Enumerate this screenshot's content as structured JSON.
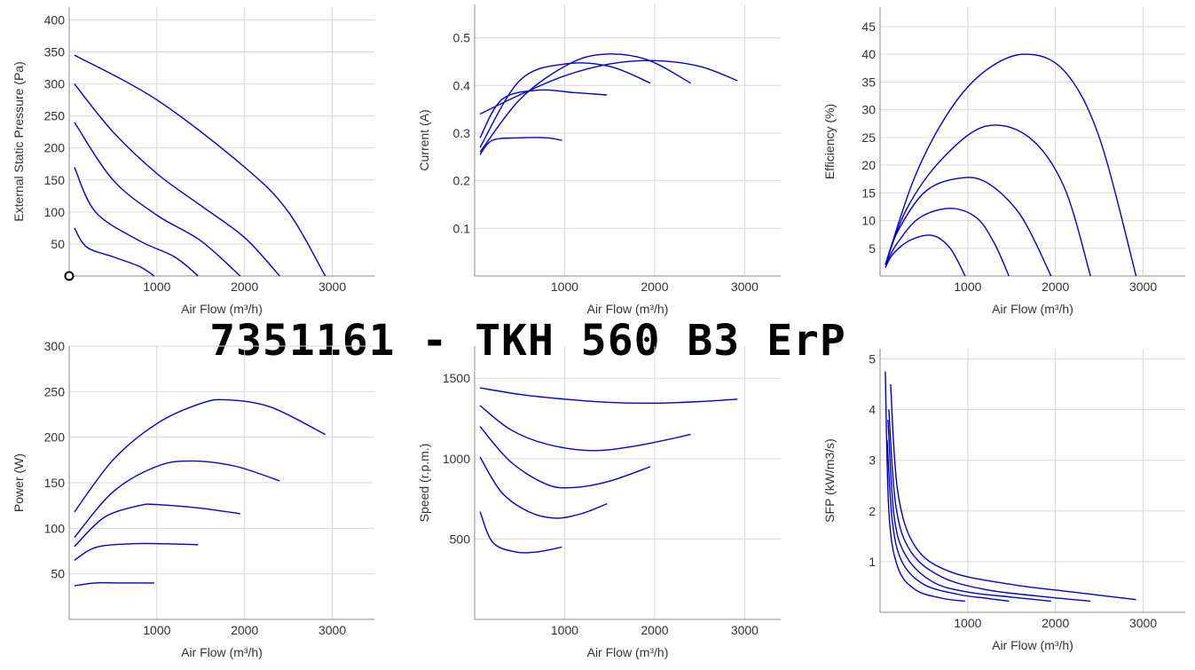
{
  "title": "7351161 - TKH 560 B3 ErP",
  "line_color": "#0000cc",
  "chart_data": [
    {
      "type": "line",
      "xlabel": "Air Flow (m³/h)",
      "ylabel": "External Static Pressure (Pa)",
      "xlim": [
        0,
        3480
      ],
      "ylim": [
        0,
        420
      ],
      "xticks": [
        "1000",
        "2000",
        "3000"
      ],
      "yticks": [
        "50",
        "100",
        "150",
        "200",
        "250",
        "300",
        "350",
        "400"
      ],
      "grid": true,
      "series": [
        {
          "x": [
            60,
            1000,
            2000,
            2500,
            2920
          ],
          "y": [
            345,
            275,
            170,
            100,
            0
          ]
        },
        {
          "x": [
            60,
            500,
            1000,
            1500,
            2000,
            2400
          ],
          "y": [
            300,
            225,
            160,
            110,
            60,
            0
          ]
        },
        {
          "x": [
            60,
            500,
            1000,
            1500,
            1950
          ],
          "y": [
            240,
            150,
            95,
            55,
            0
          ]
        },
        {
          "x": [
            60,
            300,
            800,
            1200,
            1470
          ],
          "y": [
            170,
            100,
            55,
            30,
            0
          ]
        },
        {
          "x": [
            60,
            200,
            500,
            800,
            970
          ],
          "y": [
            75,
            45,
            30,
            15,
            0
          ]
        }
      ],
      "marker": {
        "x": 0,
        "y": 0
      }
    },
    {
      "type": "line",
      "xlabel": "Air Flow (m³/h)",
      "ylabel": "Current (A)",
      "xlim": [
        0,
        3400
      ],
      "ylim": [
        0,
        0.57
      ],
      "xticks": [
        "1000",
        "2000",
        "3000"
      ],
      "yticks": [
        "0.1",
        "0.2",
        "0.3",
        "0.4",
        "0.5"
      ],
      "grid": true,
      "series": [
        {
          "x": [
            60,
            500,
            1000,
            1500,
            2000,
            2500,
            2920
          ],
          "y": [
            0.34,
            0.38,
            0.42,
            0.445,
            0.452,
            0.44,
            0.41
          ]
        },
        {
          "x": [
            60,
            500,
            1000,
            1400,
            1900,
            2400
          ],
          "y": [
            0.26,
            0.37,
            0.44,
            0.465,
            0.455,
            0.405
          ]
        },
        {
          "x": [
            60,
            500,
            1000,
            1500,
            1950
          ],
          "y": [
            0.27,
            0.41,
            0.445,
            0.44,
            0.405
          ]
        },
        {
          "x": [
            60,
            300,
            700,
            1100,
            1470
          ],
          "y": [
            0.29,
            0.37,
            0.39,
            0.385,
            0.38
          ]
        },
        {
          "x": [
            60,
            200,
            500,
            800,
            970
          ],
          "y": [
            0.255,
            0.285,
            0.29,
            0.29,
            0.285
          ]
        }
      ]
    },
    {
      "type": "line",
      "xlabel": "Air Flow (m³/h)",
      "ylabel": "Efficiency (%)",
      "xlim": [
        0,
        3480
      ],
      "ylim": [
        0,
        48.5
      ],
      "xticks": [
        "1000",
        "2000",
        "3000"
      ],
      "yticks": [
        "5",
        "10",
        "15",
        "20",
        "25",
        "30",
        "35",
        "40",
        "45"
      ],
      "grid": true,
      "series": [
        {
          "x": [
            60,
            400,
            800,
            1200,
            1650,
            2100,
            2500,
            2920
          ],
          "y": [
            2,
            18,
            30,
            37,
            40,
            37,
            25,
            0
          ]
        },
        {
          "x": [
            60,
            300,
            700,
            1200,
            1700,
            2100,
            2400
          ],
          "y": [
            2,
            12,
            21,
            27,
            25,
            16,
            0
          ]
        },
        {
          "x": [
            60,
            200,
            500,
            850,
            1200,
            1600,
            1950
          ],
          "y": [
            2,
            8,
            15,
            17.5,
            17,
            11,
            0
          ]
        },
        {
          "x": [
            60,
            200,
            450,
            800,
            1100,
            1300,
            1470
          ],
          "y": [
            2,
            6,
            10.5,
            12.2,
            10.5,
            6,
            0
          ]
        },
        {
          "x": [
            60,
            150,
            350,
            600,
            800,
            970
          ],
          "y": [
            1.5,
            4,
            6.5,
            7.3,
            5,
            0
          ]
        }
      ]
    },
    {
      "type": "line",
      "xlabel": "Air Flow (m³/h)",
      "ylabel": "Power (W)",
      "xlim": [
        0,
        3480
      ],
      "ylim": [
        0,
        300
      ],
      "xticks": [
        "1000",
        "2000",
        "3000"
      ],
      "yticks": [
        "50",
        "100",
        "150",
        "200",
        "250",
        "300"
      ],
      "grid": true,
      "series": [
        {
          "x": [
            60,
            500,
            1000,
            1500,
            1800,
            2300,
            2920
          ],
          "y": [
            118,
            175,
            215,
            237,
            241,
            233,
            203
          ]
        },
        {
          "x": [
            60,
            500,
            1000,
            1400,
            1900,
            2400
          ],
          "y": [
            90,
            140,
            168,
            174,
            168,
            152
          ]
        },
        {
          "x": [
            60,
            400,
            800,
            1000,
            1500,
            1950
          ],
          "y": [
            80,
            112,
            125,
            126,
            122,
            116
          ]
        },
        {
          "x": [
            60,
            300,
            700,
            1100,
            1470
          ],
          "y": [
            65,
            79,
            83,
            83,
            82
          ]
        },
        {
          "x": [
            60,
            300,
            600,
            970
          ],
          "y": [
            37,
            40,
            40,
            40
          ]
        }
      ]
    },
    {
      "type": "line",
      "xlabel": "Air Flow (m³/h)",
      "ylabel": "Speed (r.p.m.)",
      "xlim": [
        0,
        3400
      ],
      "ylim": [
        0,
        1700
      ],
      "xticks": [
        "1000",
        "2000",
        "3000"
      ],
      "yticks": [
        "500",
        "1000",
        "1500"
      ],
      "grid": true,
      "series": [
        {
          "x": [
            60,
            500,
            1000,
            1500,
            2000,
            2500,
            2920
          ],
          "y": [
            1440,
            1400,
            1370,
            1350,
            1345,
            1355,
            1370
          ]
        },
        {
          "x": [
            60,
            400,
            800,
            1300,
            1800,
            2400
          ],
          "y": [
            1330,
            1180,
            1090,
            1050,
            1080,
            1150
          ]
        },
        {
          "x": [
            60,
            400,
            800,
            1100,
            1500,
            1950
          ],
          "y": [
            1200,
            980,
            840,
            820,
            860,
            950
          ]
        },
        {
          "x": [
            60,
            300,
            600,
            900,
            1200,
            1470
          ],
          "y": [
            1010,
            790,
            670,
            630,
            660,
            720
          ]
        },
        {
          "x": [
            60,
            200,
            450,
            700,
            970
          ],
          "y": [
            670,
            480,
            420,
            420,
            450
          ]
        }
      ]
    },
    {
      "type": "line",
      "xlabel": "Air Flow (m³/h)",
      "ylabel": "SFP (kW/m3/s)",
      "xlim": [
        0,
        3480
      ],
      "ylim": [
        0,
        5.2
      ],
      "xticks": [
        "1000",
        "2000",
        "3000"
      ],
      "yticks": [
        "1",
        "2",
        "3",
        "4",
        "5"
      ],
      "grid": true,
      "series": [
        {
          "x": [
            120,
            200,
            400,
            800,
            1500,
            2200,
            2920
          ],
          "y": [
            4.5,
            2.4,
            1.3,
            0.8,
            0.55,
            0.4,
            0.25
          ]
        },
        {
          "x": [
            100,
            180,
            350,
            700,
            1200,
            1800,
            2400
          ],
          "y": [
            4.0,
            2.1,
            1.2,
            0.7,
            0.45,
            0.32,
            0.22
          ]
        },
        {
          "x": [
            90,
            160,
            300,
            600,
            1000,
            1500,
            1950
          ],
          "y": [
            3.8,
            1.9,
            1.1,
            0.6,
            0.4,
            0.3,
            0.22
          ]
        },
        {
          "x": [
            80,
            140,
            250,
            500,
            900,
            1200,
            1470
          ],
          "y": [
            3.4,
            1.8,
            1.0,
            0.55,
            0.35,
            0.28,
            0.22
          ]
        },
        {
          "x": [
            60,
            100,
            200,
            400,
            700,
            970
          ],
          "y": [
            4.75,
            2.0,
            0.9,
            0.45,
            0.28,
            0.22
          ]
        }
      ]
    }
  ]
}
